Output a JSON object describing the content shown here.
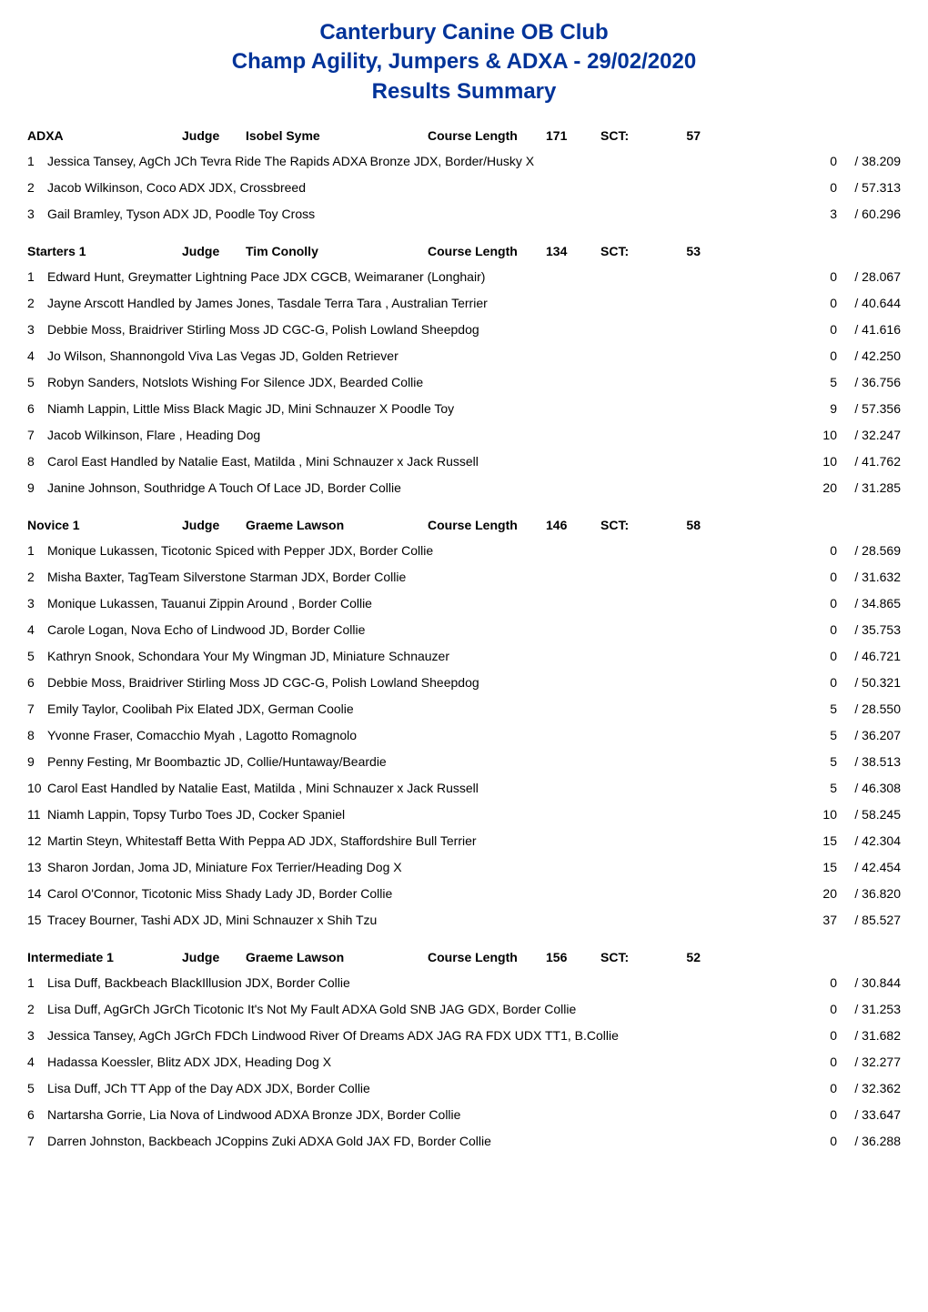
{
  "title": {
    "line1": "Canterbury Canine OB Club",
    "line2": "Champ Agility, Jumpers & ADXA - 29/02/2020",
    "line3": "Results Summary"
  },
  "labels": {
    "judge": "Judge",
    "course_length": "Course Length",
    "sct": "SCT:"
  },
  "sections": [
    {
      "name": "ADXA",
      "judge": "Isobel Syme",
      "course_length": "171",
      "sct": "57",
      "rows": [
        {
          "rank": "1",
          "text": "Jessica Tansey,   AgCh JCh Tevra Ride The Rapids ADXA Bronze JDX,   Border/Husky X",
          "faults": "0",
          "time": "/ 38.209"
        },
        {
          "rank": "2",
          "text": "Jacob Wilkinson,   Coco ADX JDX,   Crossbreed",
          "faults": "0",
          "time": "/ 57.313"
        },
        {
          "rank": "3",
          "text": "Gail Bramley,   Tyson ADX JD,   Poodle Toy Cross",
          "faults": "3",
          "time": "/ 60.296"
        }
      ]
    },
    {
      "name": "Starters 1",
      "judge": "Tim Conolly",
      "course_length": "134",
      "sct": "53",
      "rows": [
        {
          "rank": "1",
          "text": "Edward Hunt,   Greymatter Lightning Pace JDX CGCB,   Weimaraner (Longhair)",
          "faults": "0",
          "time": "/ 28.067"
        },
        {
          "rank": "2",
          "text": "Jayne Arscott Handled by James Jones,   Tasdale Terra Tara ,   Australian Terrier",
          "faults": "0",
          "time": "/ 40.644"
        },
        {
          "rank": "3",
          "text": "Debbie Moss,   Braidriver Stirling Moss JD CGC-G,   Polish Lowland Sheepdog",
          "faults": "0",
          "time": "/ 41.616"
        },
        {
          "rank": "4",
          "text": "Jo Wilson,   Shannongold Viva Las Vegas JD,   Golden Retriever",
          "faults": "0",
          "time": "/ 42.250"
        },
        {
          "rank": "5",
          "text": "Robyn Sanders,   Notslots Wishing For Silence JDX,   Bearded Collie",
          "faults": "5",
          "time": "/ 36.756"
        },
        {
          "rank": "6",
          "text": "Niamh Lappin,   Little Miss Black Magic JD,   Mini Schnauzer X Poodle Toy",
          "faults": "9",
          "time": "/ 57.356"
        },
        {
          "rank": "7",
          "text": "Jacob Wilkinson,   Flare ,   Heading Dog",
          "faults": "10",
          "time": "/ 32.247"
        },
        {
          "rank": "8",
          "text": "Carol East Handled by Natalie East,   Matilda ,   Mini Schnauzer x Jack Russell",
          "faults": "10",
          "time": "/ 41.762"
        },
        {
          "rank": "9",
          "text": "Janine Johnson,   Southridge A Touch Of Lace JD,   Border Collie",
          "faults": "20",
          "time": "/ 31.285"
        }
      ]
    },
    {
      "name": "Novice 1",
      "judge": "Graeme Lawson",
      "course_length": "146",
      "sct": "58",
      "rows": [
        {
          "rank": "1",
          "text": "Monique Lukassen,   Ticotonic Spiced with Pepper JDX,   Border Collie",
          "faults": "0",
          "time": "/ 28.569"
        },
        {
          "rank": "2",
          "text": "Misha Baxter,   TagTeam Silverstone Starman JDX,   Border Collie",
          "faults": "0",
          "time": "/ 31.632"
        },
        {
          "rank": "3",
          "text": "Monique Lukassen,   Tauanui Zippin Around ,   Border Collie",
          "faults": "0",
          "time": "/ 34.865"
        },
        {
          "rank": "4",
          "text": "Carole Logan,   Nova Echo of Lindwood JD,   Border Collie",
          "faults": "0",
          "time": "/ 35.753"
        },
        {
          "rank": "5",
          "text": "Kathryn Snook,   Schondara Your My Wingman JD,   Miniature Schnauzer",
          "faults": "0",
          "time": "/ 46.721"
        },
        {
          "rank": "6",
          "text": "Debbie Moss,   Braidriver Stirling Moss JD CGC-G,   Polish Lowland Sheepdog",
          "faults": "0",
          "time": "/ 50.321"
        },
        {
          "rank": "7",
          "text": "Emily Taylor,   Coolibah Pix Elated JDX,   German Coolie",
          "faults": "5",
          "time": "/ 28.550"
        },
        {
          "rank": "8",
          "text": "Yvonne Fraser,   Comacchio Myah ,   Lagotto Romagnolo",
          "faults": "5",
          "time": "/ 36.207"
        },
        {
          "rank": "9",
          "text": "Penny Festing,   Mr Boombaztic JD,   Collie/Huntaway/Beardie",
          "faults": "5",
          "time": "/ 38.513"
        },
        {
          "rank": "10",
          "text": "Carol East Handled by Natalie East,   Matilda ,   Mini Schnauzer x Jack Russell",
          "faults": "5",
          "time": "/ 46.308"
        },
        {
          "rank": "11",
          "text": "Niamh Lappin,   Topsy Turbo Toes JD,   Cocker Spaniel",
          "faults": "10",
          "time": "/ 58.245"
        },
        {
          "rank": "12",
          "text": "Martin Steyn,   Whitestaff Betta With Peppa AD JDX,   Staffordshire Bull Terrier",
          "faults": "15",
          "time": "/ 42.304"
        },
        {
          "rank": "13",
          "text": "Sharon Jordan,   Joma JD,   Miniature Fox Terrier/Heading Dog X",
          "faults": "15",
          "time": "/ 42.454"
        },
        {
          "rank": "14",
          "text": "Carol  O'Connor,   Ticotonic Miss Shady Lady JD,   Border Collie",
          "faults": "20",
          "time": "/ 36.820"
        },
        {
          "rank": "15",
          "text": "Tracey Bourner,   Tashi ADX JD,   Mini Schnauzer x Shih Tzu",
          "faults": "37",
          "time": "/ 85.527"
        }
      ]
    },
    {
      "name": "Intermediate 1",
      "judge": "Graeme Lawson",
      "course_length": "156",
      "sct": "52",
      "rows": [
        {
          "rank": "1",
          "text": "Lisa  Duff,   Backbeach BlackIllusion JDX,   Border Collie",
          "faults": "0",
          "time": "/ 30.844"
        },
        {
          "rank": "2",
          "text": "Lisa  Duff,   AgGrCh JGrCh Ticotonic It's Not My Fault ADXA Gold SNB JAG GDX,   Border Collie",
          "faults": "0",
          "time": "/ 31.253"
        },
        {
          "rank": "3",
          "text": "Jessica Tansey,   AgCh JGrCh FDCh Lindwood River Of Dreams ADX JAG RA FDX UDX TT1,   B.Collie",
          "faults": "0",
          "time": "/ 31.682"
        },
        {
          "rank": "4",
          "text": "Hadassa Koessler,   Blitz ADX JDX,   Heading Dog X",
          "faults": "0",
          "time": "/ 32.277"
        },
        {
          "rank": "5",
          "text": "Lisa  Duff,   JCh TT App of the Day ADX JDX,   Border Collie",
          "faults": "0",
          "time": "/ 32.362"
        },
        {
          "rank": "6",
          "text": "Nartarsha Gorrie,   Lia Nova of Lindwood ADXA Bronze JDX,   Border Collie",
          "faults": "0",
          "time": "/ 33.647"
        },
        {
          "rank": "7",
          "text": "Darren Johnston,   Backbeach JCoppins Zuki ADXA Gold JAX FD,   Border Collie",
          "faults": "0",
          "time": "/ 36.288"
        }
      ]
    }
  ]
}
